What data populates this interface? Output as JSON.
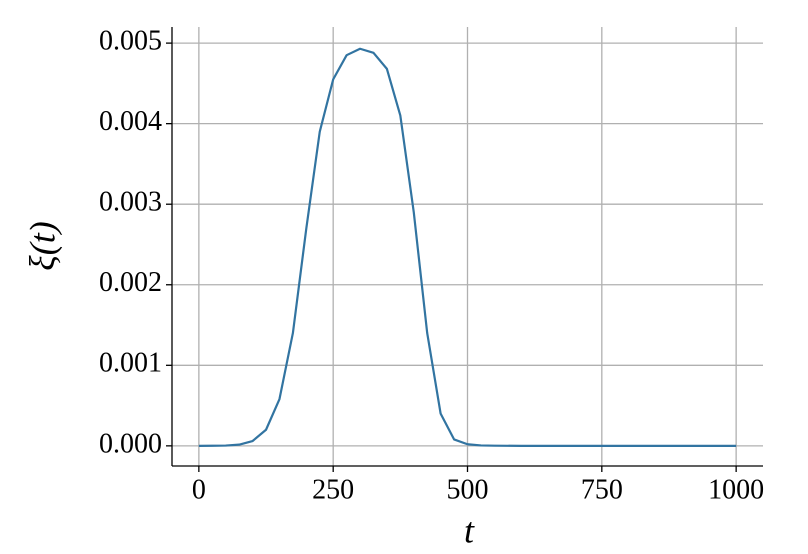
{
  "chart_data": {
    "type": "line",
    "xlabel": "t",
    "ylabel": "ξ(t)",
    "x": [
      0,
      25,
      50,
      75,
      100,
      125,
      150,
      175,
      200,
      225,
      250,
      275,
      300,
      325,
      350,
      375,
      400,
      425,
      450,
      475,
      500,
      525,
      550,
      600,
      700,
      800,
      900,
      1000
    ],
    "series": [
      {
        "color": "#3274a1",
        "values": [
          0,
          1e-06,
          4e-06,
          1.5e-05,
          6e-05,
          0.0002,
          0.00058,
          0.0014,
          0.0027,
          0.0039,
          0.00455,
          0.00485,
          0.00493,
          0.00488,
          0.00468,
          0.0041,
          0.0029,
          0.0014,
          0.0004,
          8e-05,
          2e-05,
          5e-06,
          2e-06,
          0,
          0,
          0,
          0,
          0
        ]
      }
    ],
    "xlim": [
      -50,
      1050
    ],
    "ylim": [
      -0.00025,
      0.0052
    ],
    "xticks": [
      0,
      250,
      500,
      750,
      1000
    ],
    "yticks": [
      {
        "value": 0,
        "label": "0.000"
      },
      {
        "value": 0.001,
        "label": "0.001"
      },
      {
        "value": 0.002,
        "label": "0.002"
      },
      {
        "value": 0.003,
        "label": "0.003"
      },
      {
        "value": 0.004,
        "label": "0.004"
      },
      {
        "value": 0.005,
        "label": "0.005"
      }
    ],
    "grid": true
  }
}
